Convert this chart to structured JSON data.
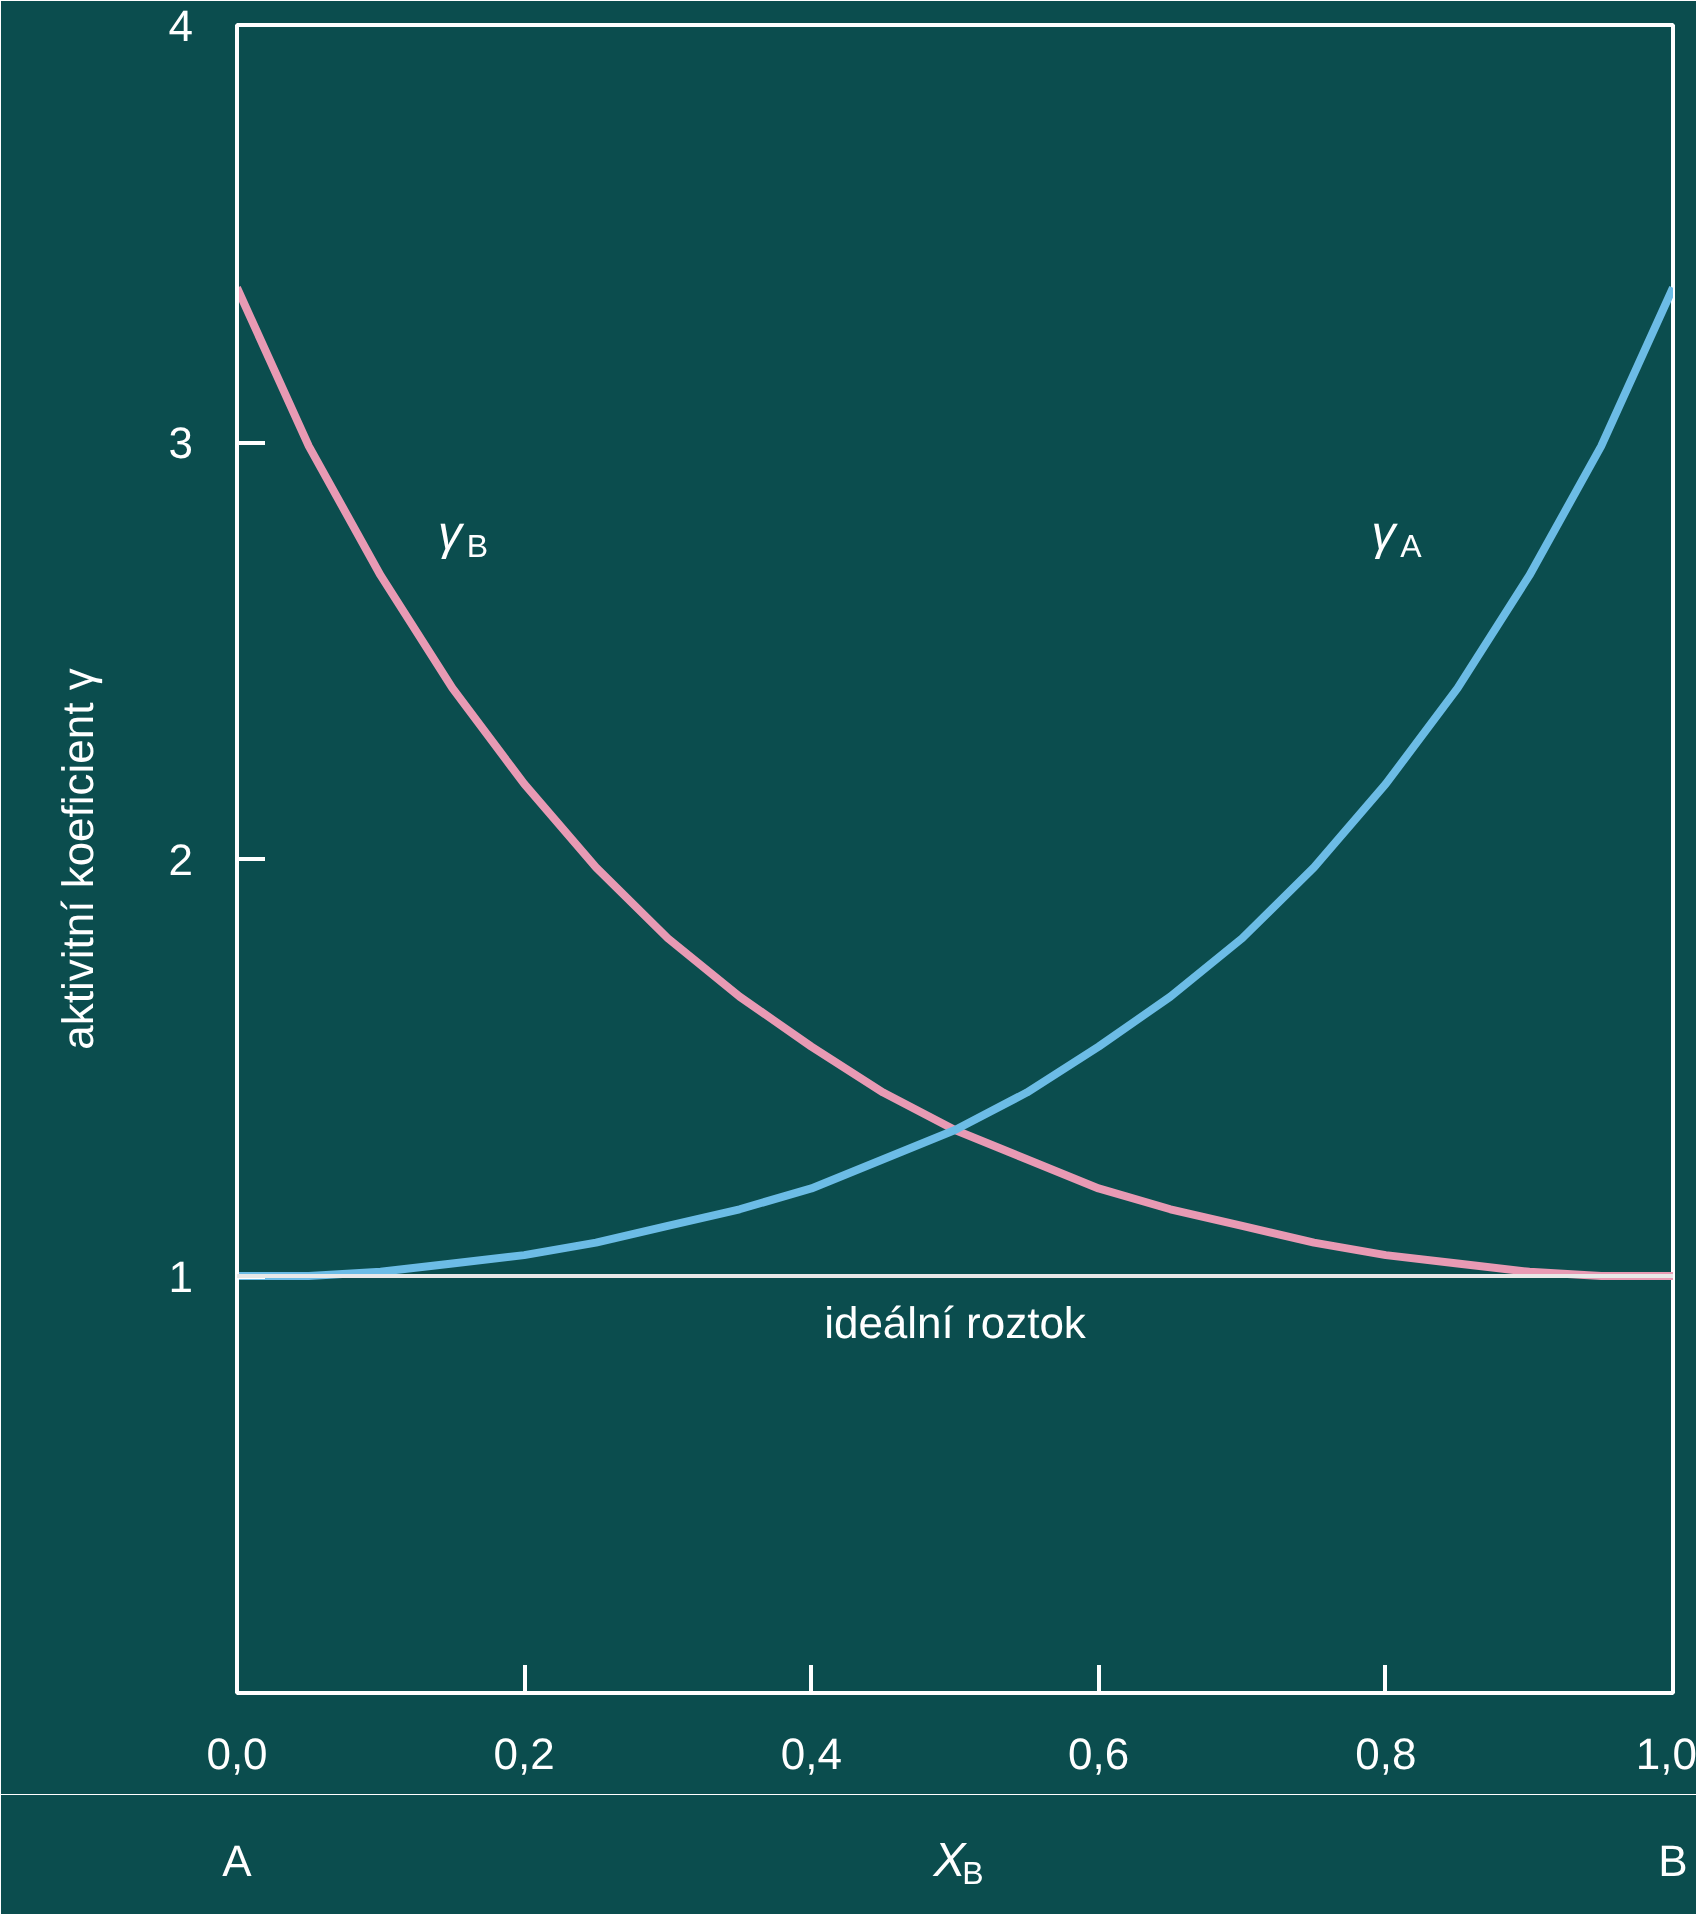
{
  "chart_data": {
    "type": "line",
    "xlabel": "X$_{B}$",
    "ylabel": "aktivitní koeficient γ",
    "x": [
      0,
      0.05,
      0.1,
      0.15,
      0.2,
      0.25,
      0.3,
      0.35,
      0.4,
      0.45,
      0.5,
      0.55,
      0.6,
      0.65,
      0.7,
      0.75,
      0.8,
      0.85,
      0.9,
      0.95,
      1.0
    ],
    "series": [
      {
        "name": "γ$_{B}$",
        "color": "#e89ab4",
        "values": [
          3.37,
          2.99,
          2.68,
          2.41,
          2.18,
          1.98,
          1.81,
          1.67,
          1.55,
          1.44,
          1.35,
          1.28,
          1.21,
          1.16,
          1.12,
          1.08,
          1.05,
          1.03,
          1.01,
          1.0,
          1.0
        ]
      },
      {
        "name": "γ$_{A}$",
        "color": "#6cbce6",
        "values": [
          1.0,
          1.0,
          1.01,
          1.03,
          1.05,
          1.08,
          1.12,
          1.16,
          1.21,
          1.28,
          1.35,
          1.44,
          1.55,
          1.67,
          1.81,
          1.98,
          2.18,
          2.41,
          2.68,
          2.99,
          3.37
        ]
      }
    ],
    "ref_lines": [
      {
        "axis": "y",
        "value": 1,
        "label": "ideální roztok",
        "color": "#e8e8e8"
      }
    ],
    "annotations": [
      "A",
      "B"
    ],
    "xlim": [
      0,
      1
    ],
    "ylim": [
      0,
      4
    ],
    "xticks": [
      {
        "value": 0,
        "label": "0,0"
      },
      {
        "value": 0.2,
        "label": "0,2"
      },
      {
        "value": 0.4,
        "label": "0,4"
      },
      {
        "value": 0.6,
        "label": "0,6"
      },
      {
        "value": 0.8,
        "label": "0,8"
      },
      {
        "value": 1.0,
        "label": "1,0"
      }
    ],
    "yticks": [
      1,
      2,
      3,
      4
    ],
    "grid": false,
    "legend": false,
    "marker": "none",
    "line_style": "solid"
  }
}
